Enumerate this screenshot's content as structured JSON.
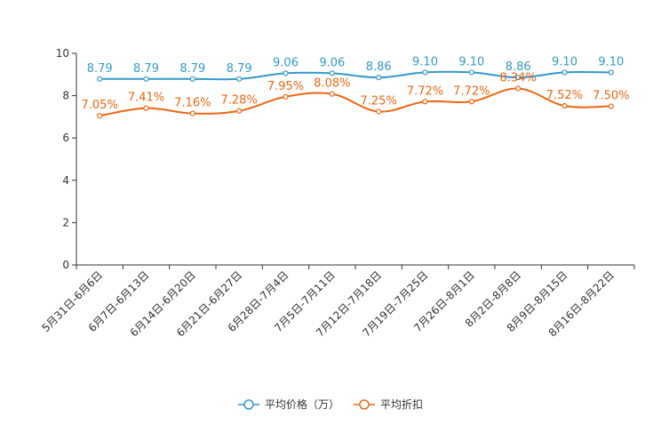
{
  "chart_data": {
    "type": "line",
    "title": "",
    "xlabel": "",
    "ylabel": "",
    "ylim": [
      0,
      10
    ],
    "yticks": [
      0,
      2,
      4,
      6,
      8,
      10
    ],
    "grid": false,
    "legend_position": "bottom-center",
    "categories": [
      "5月31日-6月6日",
      "6月7日-6月13日",
      "6月14日-6月20日",
      "6月21日-6月27日",
      "6月28日-7月4日",
      "7月5日-7月11日",
      "7月12日-7月18日",
      "7月19日-7月25日",
      "7月26日-8月1日",
      "8月2日-8月8日",
      "8月9日-8月15日",
      "8月16日-8月22日"
    ],
    "series": [
      {
        "name": "平均价格（万）",
        "color": "#3399cc",
        "values": [
          8.79,
          8.79,
          8.79,
          8.79,
          9.06,
          9.06,
          8.86,
          9.1,
          9.1,
          8.86,
          9.1,
          9.1
        ],
        "labels": [
          "8.79",
          "8.79",
          "8.79",
          "8.79",
          "9.06",
          "9.06",
          "8.86",
          "9.10",
          "9.10",
          "8.86",
          "9.10",
          "9.10"
        ]
      },
      {
        "name": "平均折扣",
        "color": "#ee6611",
        "values": [
          7.05,
          7.41,
          7.16,
          7.28,
          7.95,
          8.08,
          7.25,
          7.72,
          7.72,
          8.34,
          7.52,
          7.5
        ],
        "labels": [
          "7.05%",
          "7.41%",
          "7.16%",
          "7.28%",
          "7.95%",
          "8.08%",
          "7.25%",
          "7.72%",
          "7.72%",
          "8.34%",
          "7.52%",
          "7.50%"
        ]
      }
    ]
  }
}
